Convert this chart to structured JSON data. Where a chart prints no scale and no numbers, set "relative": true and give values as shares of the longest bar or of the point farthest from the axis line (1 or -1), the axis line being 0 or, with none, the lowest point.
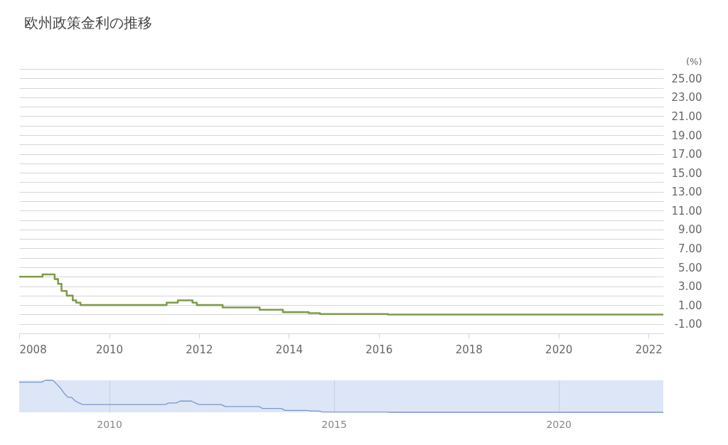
{
  "chart_data": [
    {
      "type": "step",
      "title": "欧州政策金利の推移",
      "ylabel": "(%)",
      "color": "#7f9b4d",
      "x": [
        "2008-01-01",
        "2008-07-09",
        "2008-10-15",
        "2008-11-12",
        "2008-12-10",
        "2009-01-21",
        "2009-03-11",
        "2009-04-08",
        "2009-05-13",
        "2011-04-13",
        "2011-07-13",
        "2011-11-09",
        "2011-12-14",
        "2012-07-11",
        "2013-05-08",
        "2013-11-13",
        "2014-06-11",
        "2014-09-10",
        "2016-03-16",
        "2022-05-01"
      ],
      "values": [
        4.0,
        4.25,
        3.75,
        3.25,
        2.5,
        2.0,
        1.5,
        1.25,
        1.0,
        1.25,
        1.5,
        1.25,
        1.0,
        0.75,
        0.5,
        0.25,
        0.15,
        0.05,
        0.0,
        0.0
      ],
      "xlim": [
        "2008-01-01",
        "2022-05-01"
      ],
      "xticks": [
        "2008",
        "2010",
        "2012",
        "2014",
        "2016",
        "2018",
        "2020",
        "2022"
      ],
      "ylim": [
        -2,
        26
      ],
      "yticks": [
        {
          "value": -2,
          "label": null
        },
        {
          "value": -1,
          "label": "-1.00"
        },
        {
          "value": 0,
          "label": null
        },
        {
          "value": 1,
          "label": "1.00"
        },
        {
          "value": 2,
          "label": null
        },
        {
          "value": 3,
          "label": "3.00"
        },
        {
          "value": 4,
          "label": null
        },
        {
          "value": 5,
          "label": "5.00"
        },
        {
          "value": 6,
          "label": null
        },
        {
          "value": 7,
          "label": "7.00"
        },
        {
          "value": 8,
          "label": null
        },
        {
          "value": 9,
          "label": "9.00"
        },
        {
          "value": 10,
          "label": null
        },
        {
          "value": 11,
          "label": "11.00"
        },
        {
          "value": 12,
          "label": null
        },
        {
          "value": 13,
          "label": "13.00"
        },
        {
          "value": 14,
          "label": null
        },
        {
          "value": 15,
          "label": "15.00"
        },
        {
          "value": 16,
          "label": null
        },
        {
          "value": 17,
          "label": "17.00"
        },
        {
          "value": 18,
          "label": null
        },
        {
          "value": 19,
          "label": "19.00"
        },
        {
          "value": 20,
          "label": null
        },
        {
          "value": 21,
          "label": "21.00"
        },
        {
          "value": 22,
          "label": null
        },
        {
          "value": 23,
          "label": "23.00"
        },
        {
          "value": 24,
          "label": null
        },
        {
          "value": 25,
          "label": "25.00"
        },
        {
          "value": 26,
          "label": null
        }
      ],
      "grid": "y"
    },
    {
      "type": "line",
      "relative": true,
      "color": "#7a96cf",
      "x": [
        "2008-01-01",
        "2008-07-01",
        "2008-08-01",
        "2008-10-01",
        "2008-11-01",
        "2008-12-01",
        "2009-01-01",
        "2009-02-01",
        "2009-03-01",
        "2009-04-01",
        "2009-05-01",
        "2009-06-01",
        "2011-04-01",
        "2011-05-01",
        "2011-07-01",
        "2011-08-01",
        "2011-11-01",
        "2011-12-01",
        "2012-01-01",
        "2012-07-01",
        "2012-08-01",
        "2013-05-01",
        "2013-06-01",
        "2013-11-01",
        "2013-12-01",
        "2014-06-01",
        "2014-07-01",
        "2014-09-01",
        "2014-10-01",
        "2016-03-01",
        "2016-04-01",
        "2022-05-01"
      ],
      "values": [
        0.94,
        0.94,
        1,
        1,
        0.88,
        0.76,
        0.59,
        0.47,
        0.47,
        0.35,
        0.29,
        0.24,
        0.24,
        0.29,
        0.29,
        0.35,
        0.35,
        0.29,
        0.24,
        0.24,
        0.18,
        0.18,
        0.12,
        0.12,
        0.06,
        0.06,
        0.04,
        0.04,
        0.01,
        0.01,
        0,
        0
      ],
      "xlim": [
        "2008-01-01",
        "2022-05-01"
      ],
      "xticks": [
        "2010",
        "2015",
        "2020"
      ],
      "grid": "x"
    }
  ]
}
